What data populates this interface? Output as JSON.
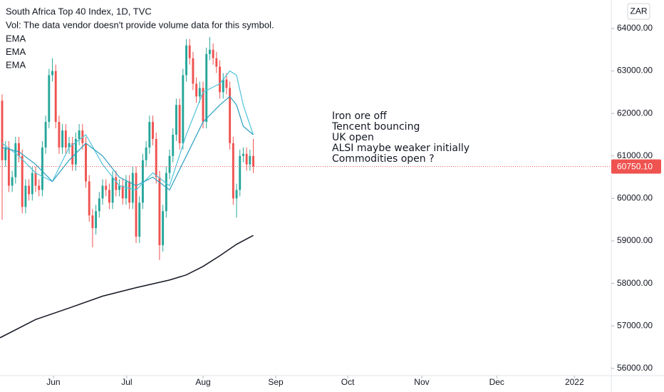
{
  "chart_data": {
    "type": "candlestick",
    "title": "South Africa Top 40 Index, 1D, TVC",
    "subtitle": "Vol: The data vendor doesn't provide volume data for this symbol.",
    "currency": "ZAR",
    "annotation": [
      "Iron ore off",
      "Tencent bouncing",
      "UK open",
      "ALSI maybe weaker initially",
      "Commodities open ?"
    ],
    "up_color": "#26a69a",
    "down_color": "#ef5350",
    "xlim": [
      -0.64,
      181.9
    ],
    "xticks": [
      {
        "value": 15.3,
        "label": "Jun"
      },
      {
        "value": 37.2,
        "label": "Jul"
      },
      {
        "value": 60,
        "label": "Aug"
      },
      {
        "value": 81.7,
        "label": "Sep"
      },
      {
        "value": 103.2,
        "label": "Oct"
      },
      {
        "value": 125.3,
        "label": "Nov"
      },
      {
        "value": 147.7,
        "label": "Dec"
      },
      {
        "value": 170.9,
        "label": "2022"
      }
    ],
    "ylim": [
      55830,
      64670
    ],
    "yticks": [
      {
        "value": 56000,
        "label": "56000.00"
      },
      {
        "value": 57000,
        "label": "57000.00"
      },
      {
        "value": 58000,
        "label": "58000.00"
      },
      {
        "value": 59000,
        "label": "59000.00"
      },
      {
        "value": 60000,
        "label": "60000.00"
      },
      {
        "value": 61000,
        "label": "61000.00"
      },
      {
        "value": 62000,
        "label": "62000.00"
      },
      {
        "value": 63000,
        "label": "63000.00"
      },
      {
        "value": 64000,
        "label": "64000.00"
      }
    ],
    "grid": false,
    "last_price": {
      "value": 60750.1,
      "label": "60750.10"
    },
    "open": [
      62300,
      60900,
      61200,
      60300,
      60500,
      61300,
      61000,
      59800,
      60300,
      60100,
      60600,
      60300,
      60200,
      61200,
      61800,
      62900,
      63000,
      61800,
      61200,
      61600,
      61200,
      61300,
      60800,
      61400,
      61600,
      61300,
      60400,
      59600,
      59300,
      59700,
      60000,
      60300,
      60200,
      59900,
      60500,
      60200,
      60300,
      60000,
      60400,
      59900,
      60600,
      59100,
      59900,
      60900,
      61200,
      61800,
      61400,
      60500,
      58900,
      59700,
      60600,
      61000,
      61500,
      62200,
      61300,
      62900,
      63600,
      63300,
      62700,
      62400,
      62600,
      61800,
      63400,
      63500,
      63300,
      63100,
      62500,
      62800,
      62600,
      61300,
      60000,
      60200,
      61000,
      61050,
      60800,
      61000
    ],
    "high": [
      62450,
      61350,
      61350,
      60650,
      61450,
      61450,
      61150,
      60450,
      60450,
      60750,
      60750,
      60450,
      61350,
      61950,
      63050,
      63300,
      63150,
      61950,
      61750,
      61750,
      61450,
      61450,
      61550,
      61750,
      61750,
      61450,
      60550,
      59750,
      59850,
      60150,
      60450,
      60450,
      60350,
      60650,
      60650,
      60450,
      60450,
      60550,
      60550,
      60750,
      60750,
      60050,
      61050,
      61350,
      61950,
      61950,
      61550,
      60650,
      59850,
      60750,
      61150,
      61650,
      62350,
      62350,
      63050,
      63750,
      63750,
      63450,
      62850,
      62750,
      62750,
      63550,
      63800,
      63650,
      63450,
      63250,
      62950,
      62950,
      62750,
      61450,
      60350,
      61150,
      61200,
      61200,
      61150,
      61400
    ],
    "low": [
      59500,
      60750,
      60150,
      60150,
      60350,
      60850,
      59650,
      59650,
      59950,
      59950,
      60150,
      60050,
      60050,
      61050,
      61650,
      62750,
      61650,
      61050,
      61050,
      61050,
      61050,
      60650,
      60650,
      61250,
      61150,
      60250,
      59450,
      58850,
      59150,
      59550,
      59850,
      60050,
      59750,
      59750,
      60050,
      60050,
      59850,
      59850,
      59750,
      59750,
      58950,
      58950,
      59750,
      60750,
      61050,
      61250,
      60350,
      58550,
      58750,
      59550,
      60450,
      60850,
      61350,
      61150,
      61150,
      62750,
      63150,
      62550,
      62250,
      62250,
      61650,
      61650,
      63250,
      63150,
      62950,
      62350,
      62350,
      62450,
      61150,
      59850,
      59550,
      60050,
      60850,
      60650,
      60650,
      60600
    ],
    "close": [
      60900,
      61200,
      60300,
      60500,
      61300,
      61000,
      59800,
      60300,
      60100,
      60600,
      60300,
      60200,
      61200,
      61800,
      62900,
      63000,
      61800,
      61200,
      61600,
      61200,
      61300,
      60800,
      61400,
      61600,
      61300,
      60400,
      59600,
      59300,
      59700,
      60000,
      60300,
      60200,
      59900,
      60500,
      60200,
      60300,
      60000,
      60400,
      59900,
      60600,
      59100,
      59900,
      60900,
      61200,
      61800,
      61400,
      60500,
      58900,
      59700,
      60600,
      61000,
      61500,
      62200,
      61300,
      62900,
      63600,
      63300,
      62700,
      62400,
      62600,
      61800,
      63400,
      63500,
      63300,
      63100,
      62500,
      62800,
      62600,
      61300,
      60000,
      60200,
      61000,
      61050,
      60800,
      61000,
      60750.1
    ],
    "series": [
      {
        "name": "EMA",
        "color": "#4fc3dc",
        "x": [
          0,
          5,
          10,
          15,
          20,
          25,
          30,
          35,
          40,
          45,
          50,
          55,
          60,
          65,
          68,
          70,
          72,
          75
        ],
        "values": [
          61300,
          61000,
          60600,
          60400,
          61200,
          61500,
          60800,
          60300,
          60200,
          60600,
          60300,
          61500,
          62500,
          62700,
          63000,
          62900,
          62200,
          61500
        ]
      },
      {
        "name": "EMA",
        "color": "#2a9fc0",
        "x": [
          0,
          5,
          10,
          15,
          20,
          25,
          30,
          35,
          40,
          45,
          50,
          55,
          60,
          65,
          68,
          70,
          72,
          75
        ],
        "values": [
          61200,
          61100,
          60800,
          60400,
          60900,
          61300,
          61000,
          60500,
          60300,
          60500,
          60200,
          61000,
          61800,
          62200,
          62400,
          62200,
          61700,
          61500
        ]
      },
      {
        "name": "EMA",
        "color": "#131722",
        "x": [
          -0.64,
          10,
          20,
          30,
          40,
          50,
          55,
          60,
          65,
          70,
          75
        ],
        "values": [
          56720,
          57150,
          57420,
          57700,
          57900,
          58080,
          58200,
          58400,
          58650,
          58920,
          59130
        ]
      }
    ]
  }
}
